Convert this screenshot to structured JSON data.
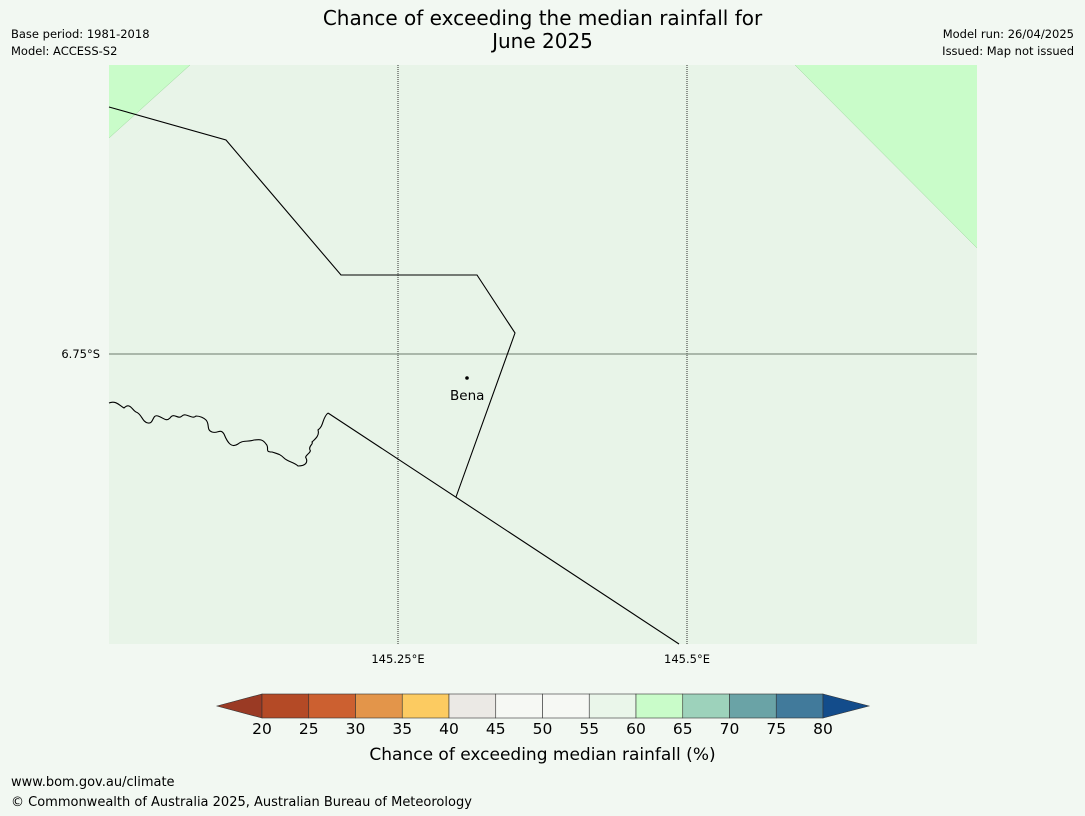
{
  "header": {
    "title_line1": "Chance of exceeding the median rainfall for",
    "title_line2": "June 2025",
    "base_period": "Base period: 1981-2018",
    "model": "Model: ACCESS-S2",
    "model_run": "Model run: 26/04/2025",
    "issued": "Issued: Map not issued"
  },
  "map": {
    "background_color": "#e8f4e8",
    "highlight_color": "#c9fcc9",
    "place": {
      "name": "Bena"
    },
    "latitude_labels": [
      "6.75°S"
    ],
    "longitude_labels": [
      "145.25°E",
      "145.5°E"
    ]
  },
  "colorbar": {
    "title": "Chance of exceeding median rainfall (%)",
    "ticks": [
      "20",
      "25",
      "30",
      "35",
      "40",
      "45",
      "50",
      "55",
      "60",
      "65",
      "70",
      "75",
      "80"
    ],
    "colors": [
      "#9a3a24",
      "#b44a26",
      "#cc6030",
      "#e3954a",
      "#fccb61",
      "#ebe9e5",
      "#f6f8f4",
      "#f6f8f4",
      "#eaf6ea",
      "#c9fcc9",
      "#9dd2bb",
      "#6aa3a6",
      "#417a9b",
      "#134c8b"
    ]
  },
  "footer": {
    "url": "www.bom.gov.au/climate",
    "copyright": "© Commonwealth of Australia 2025, Australian Bureau of Meteorology"
  }
}
